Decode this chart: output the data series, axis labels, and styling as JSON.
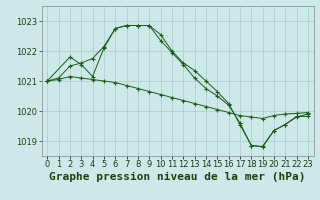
{
  "title": "Graphe pression niveau de la mer (hPa)",
  "bg_color": "#cce8e8",
  "grid_color": "#aacccc",
  "line_color": "#1a5c1a",
  "text_color": "#1a4010",
  "ylim": [
    1018.5,
    1023.5
  ],
  "xlim": [
    -0.5,
    23.5
  ],
  "yticks": [
    1019,
    1020,
    1021,
    1022,
    1023
  ],
  "xticks": [
    0,
    1,
    2,
    3,
    4,
    5,
    6,
    7,
    8,
    9,
    10,
    11,
    12,
    13,
    14,
    15,
    16,
    17,
    18,
    19,
    20,
    21,
    22,
    23
  ],
  "lines": [
    {
      "x": [
        0,
        1,
        2,
        3,
        4,
        5,
        6,
        7,
        8,
        9,
        10,
        11,
        12,
        13,
        14,
        15,
        16,
        17,
        18,
        19,
        20,
        21,
        22,
        23
      ],
      "y": [
        1021.0,
        1021.05,
        1021.15,
        1021.1,
        1021.05,
        1021.0,
        1020.95,
        1020.85,
        1020.75,
        1020.65,
        1020.55,
        1020.45,
        1020.35,
        1020.25,
        1020.15,
        1020.05,
        1019.95,
        1019.85,
        1019.8,
        1019.75,
        1019.85,
        1019.9,
        1019.92,
        1019.95
      ]
    },
    {
      "x": [
        0,
        1,
        2,
        3,
        4,
        5,
        6,
        7,
        8,
        9,
        10,
        11,
        12,
        13,
        14,
        15,
        16,
        17,
        18,
        19,
        20,
        21,
        22,
        23
      ],
      "y": [
        1021.0,
        1021.1,
        1021.5,
        1021.6,
        1021.75,
        1022.15,
        1022.75,
        1022.85,
        1022.85,
        1022.85,
        1022.55,
        1022.0,
        1021.6,
        1021.35,
        1021.0,
        1020.65,
        1020.25,
        1019.55,
        1018.85,
        1018.82,
        1019.35,
        1019.55,
        1019.8,
        1019.9
      ]
    },
    {
      "x": [
        0,
        2,
        3,
        4,
        5,
        6,
        7,
        8,
        9,
        10,
        11,
        12,
        13,
        14,
        15,
        16,
        17,
        18,
        19,
        20,
        21,
        22,
        23
      ],
      "y": [
        1021.0,
        1021.8,
        1021.55,
        1021.15,
        1022.1,
        1022.75,
        1022.85,
        1022.85,
        1022.85,
        1022.35,
        1021.95,
        1021.55,
        1021.1,
        1020.75,
        1020.5,
        1020.2,
        1019.6,
        1018.85,
        1018.8,
        1019.35,
        1019.55,
        1019.82,
        1019.82
      ]
    }
  ],
  "title_fontsize": 8,
  "tick_fontsize": 6,
  "fig_bg": "#cce8e8"
}
